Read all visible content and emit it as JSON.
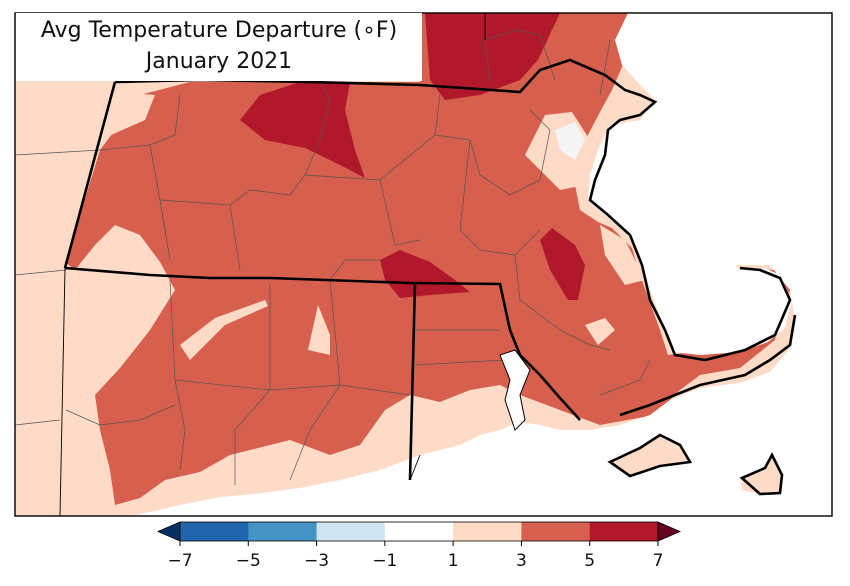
{
  "title": {
    "line1": "Avg Temperature Departure (∘F)",
    "line2": "January 2021"
  },
  "colorbar": {
    "ticks": [
      "−7",
      "−5",
      "−3",
      "−1",
      "1",
      "3",
      "5",
      "7"
    ],
    "bins": [
      {
        "from": -7,
        "to": -5,
        "color": "#2166ac"
      },
      {
        "from": -5,
        "to": -3,
        "color": "#4393c3"
      },
      {
        "from": -3,
        "to": -1,
        "color": "#d1e5f0"
      },
      {
        "from": -1,
        "to": 1,
        "color": "#ffffff"
      },
      {
        "from": 1,
        "to": 3,
        "color": "#fddbc7"
      },
      {
        "from": 3,
        "to": 5,
        "color": "#d6604d"
      },
      {
        "from": 5,
        "to": 7,
        "color": "#b2182b"
      }
    ],
    "extend_min_color": "#053061",
    "extend_max_color": "#67001f"
  },
  "colors": {
    "light": "#fddbc7",
    "medium": "#d6604d",
    "dark": "#b2182b",
    "water": "#ffffff",
    "border": "#000000"
  }
}
